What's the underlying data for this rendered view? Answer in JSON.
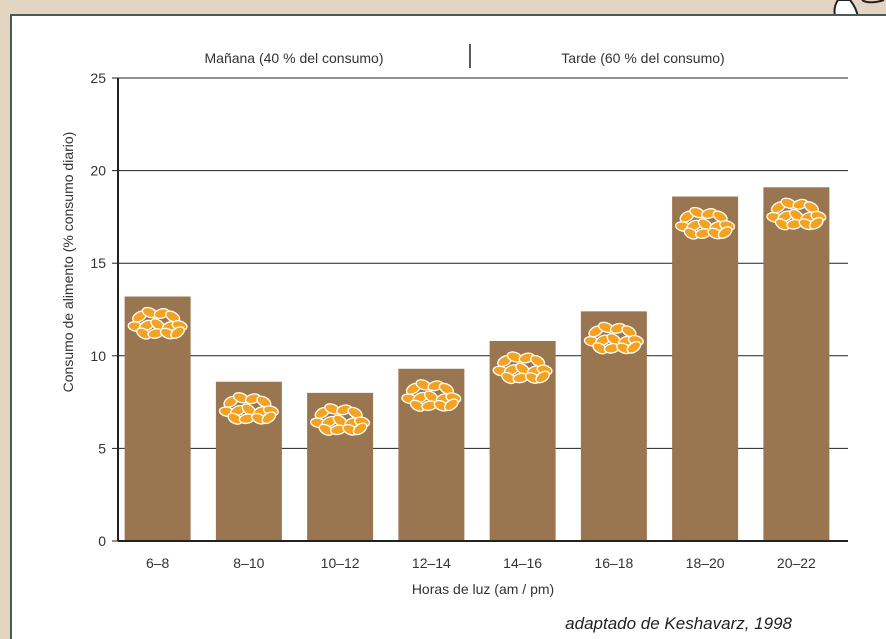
{
  "chart_data": {
    "type": "bar",
    "title": "",
    "period_labels": {
      "morning": "Mañana (40 % del consumo)",
      "afternoon": "Tarde (60 % del consumo)"
    },
    "categories": [
      "6–8",
      "8–10",
      "10–12",
      "12–14",
      "14–16",
      "16–18",
      "18–20",
      "20–22"
    ],
    "values": [
      13.2,
      8.6,
      8.0,
      9.3,
      10.8,
      12.4,
      18.6,
      19.1
    ],
    "xlabel": "Horas de luz (am / pm)",
    "ylabel": "Consumo de alimento (% consumo diario)",
    "ylim": [
      0,
      25
    ],
    "yticks": [
      0,
      5,
      10,
      15,
      20,
      25
    ],
    "grid": true,
    "bar_color": "#9a7650",
    "grain_color": "#f3a321",
    "source": "adaptado de Keshavarz, 1998"
  },
  "icons": {
    "corner": "seed-icon",
    "bar_marker": "grain-pile-icon"
  }
}
